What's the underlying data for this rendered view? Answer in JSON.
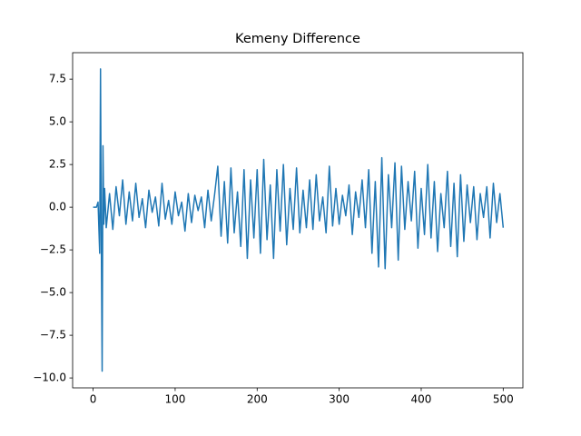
{
  "chart_data": {
    "type": "line",
    "title": "Kemeny Difference",
    "x": [
      0,
      2,
      4,
      6,
      8,
      9,
      10,
      11,
      12,
      13,
      14,
      16,
      20,
      24,
      28,
      32,
      36,
      40,
      44,
      48,
      52,
      56,
      60,
      64,
      68,
      72,
      76,
      80,
      84,
      88,
      92,
      96,
      100,
      104,
      108,
      112,
      116,
      120,
      124,
      128,
      132,
      136,
      140,
      144,
      148,
      152,
      156,
      160,
      164,
      168,
      172,
      176,
      180,
      184,
      188,
      192,
      196,
      200,
      204,
      208,
      212,
      216,
      220,
      224,
      228,
      232,
      236,
      240,
      244,
      248,
      252,
      256,
      260,
      264,
      268,
      272,
      276,
      280,
      284,
      288,
      292,
      296,
      300,
      304,
      308,
      312,
      316,
      320,
      324,
      328,
      332,
      336,
      340,
      344,
      348,
      352,
      356,
      360,
      364,
      368,
      372,
      376,
      380,
      384,
      388,
      392,
      396,
      400,
      404,
      408,
      412,
      416,
      420,
      424,
      428,
      432,
      436,
      440,
      444,
      448,
      452,
      456,
      460,
      464,
      468,
      472,
      476,
      480,
      484,
      488,
      492,
      496,
      500
    ],
    "series": [
      {
        "name": "Kemeny Difference",
        "color": "#1f77b4",
        "values": [
          0,
          0,
          0,
          0.3,
          -2.7,
          8.1,
          -2,
          -9.6,
          3.6,
          -1,
          1.1,
          -1.2,
          0.8,
          -1.3,
          1.2,
          -0.5,
          1.6,
          -1,
          0.9,
          -0.8,
          1.4,
          -0.6,
          0.5,
          -1.2,
          1,
          -0.3,
          0.6,
          -1.1,
          1.4,
          -0.7,
          0.4,
          -1,
          0.9,
          -0.5,
          0.3,
          -1.4,
          0.8,
          -0.9,
          0.7,
          -0.2,
          0.6,
          -1.2,
          1,
          -0.8,
          0.7,
          2.4,
          -1.7,
          1.5,
          -2.1,
          2.3,
          -1.5,
          0.9,
          -2.3,
          2.2,
          -3,
          1.6,
          -1.8,
          2.2,
          -2.7,
          2.8,
          -1.9,
          1.3,
          -3,
          2.2,
          -1.4,
          2.5,
          -2.2,
          1.1,
          -1.3,
          2.3,
          -1.5,
          1,
          -1.2,
          1.6,
          -1.3,
          1.9,
          -0.8,
          0.6,
          -1.5,
          2.4,
          -1.1,
          1.1,
          -1,
          0.7,
          -0.5,
          1.3,
          -1.6,
          0.9,
          -0.6,
          1.6,
          -1.2,
          2.2,
          -2.7,
          1.5,
          -3.5,
          2.9,
          -3.6,
          1.9,
          -1.2,
          2.6,
          -3.1,
          2.4,
          -1.3,
          1.5,
          -0.8,
          2.1,
          -2.4,
          1.1,
          -1.6,
          2.5,
          -1.8,
          1.5,
          -2.6,
          0.8,
          -1.2,
          2.1,
          -2.3,
          1.4,
          -2.9,
          1.9,
          -2,
          1.3,
          -0.9,
          1.2,
          -1.9,
          0.8,
          -0.6,
          1.2,
          -1.8,
          1.4,
          -0.9,
          0.8,
          -1.2
        ]
      }
    ],
    "xlim": [
      -25,
      524
    ],
    "ylim": [
      -10.58,
      9.05
    ],
    "xticks": [
      0,
      100,
      200,
      300,
      400,
      500
    ],
    "yticks": [
      {
        "value": -10,
        "label": "−10.0"
      },
      {
        "value": -7.5,
        "label": "−7.5"
      },
      {
        "value": -5,
        "label": "−5.0"
      },
      {
        "value": -2.5,
        "label": "−2.5"
      },
      {
        "value": 0,
        "label": "0.0"
      },
      2.5,
      {
        "value": 5,
        "label": "5.0"
      },
      7.5
    ]
  }
}
